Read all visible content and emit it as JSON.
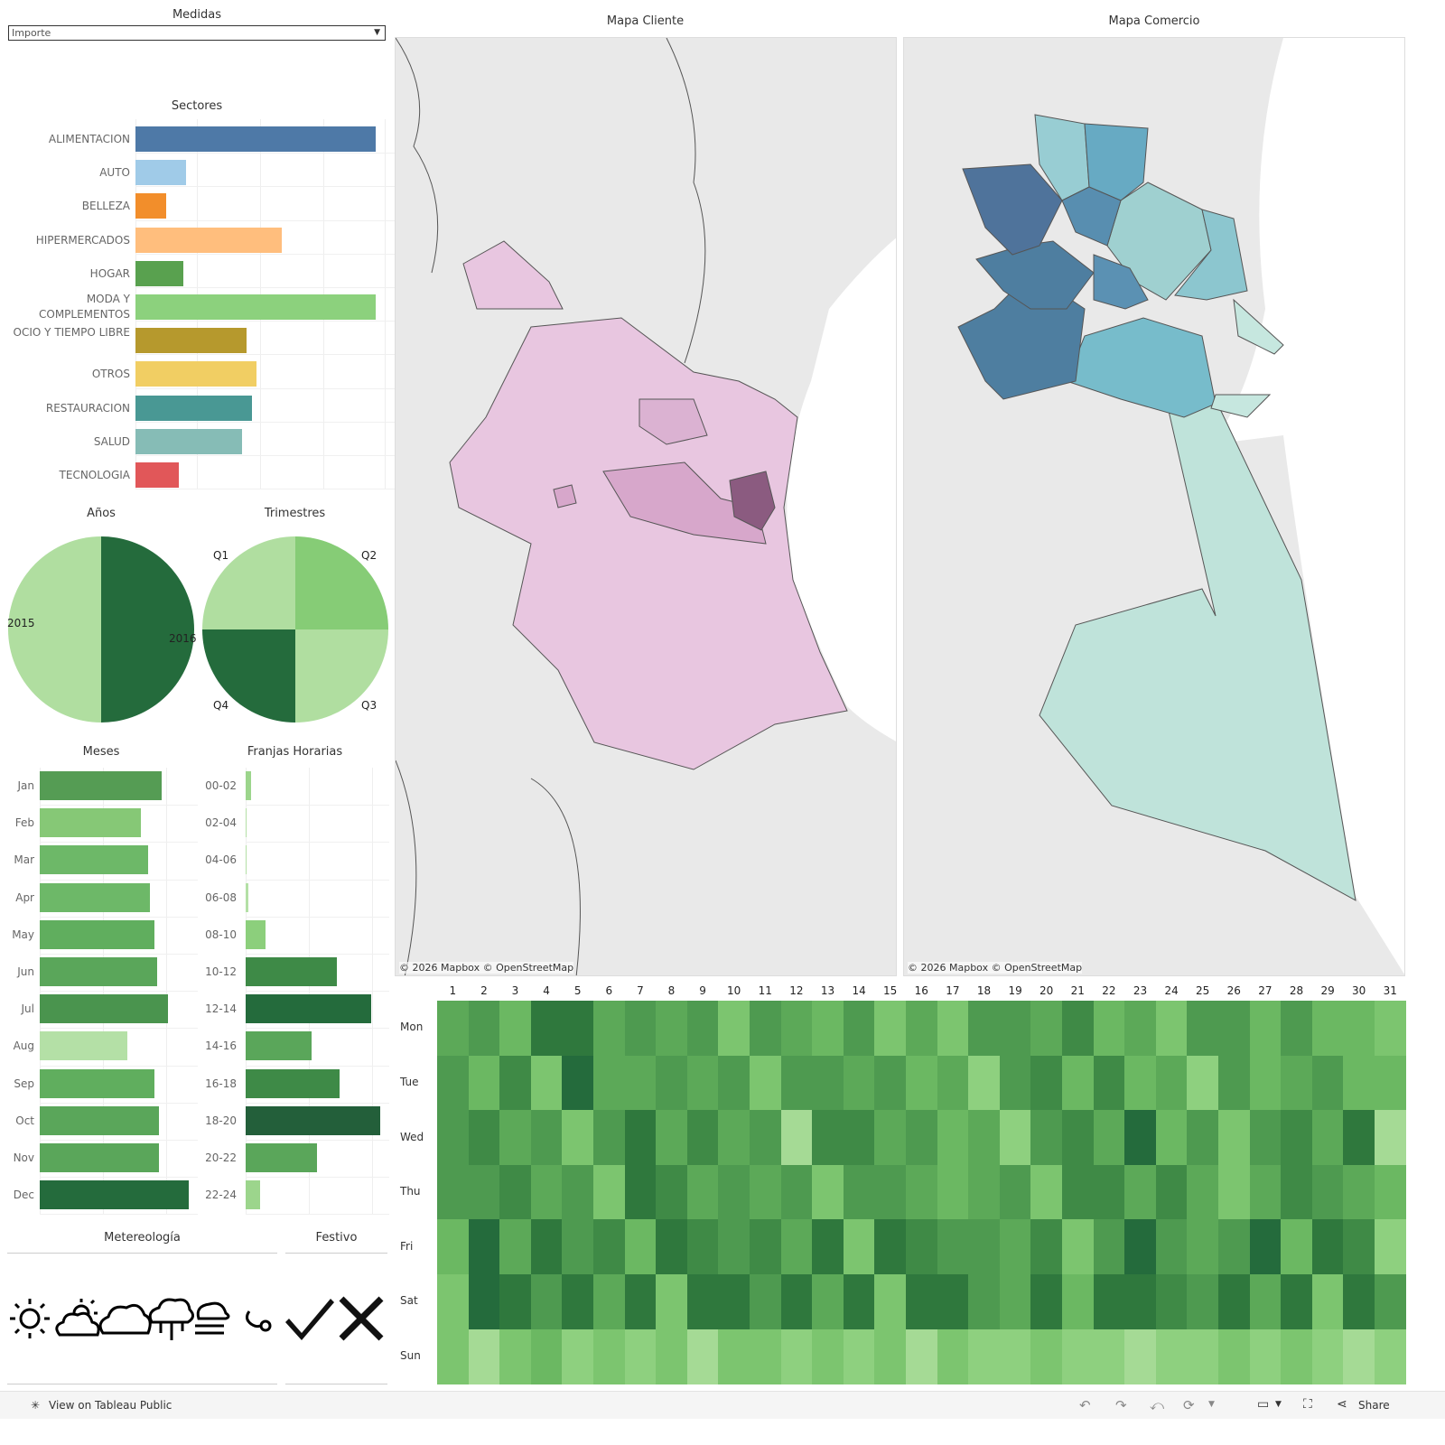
{
  "medidas": {
    "title": "Medidas",
    "value": "Importe"
  },
  "sectores": {
    "title": "Sectores",
    "xmax": 100,
    "items": [
      {
        "label": "ALIMENTACION",
        "value": 95,
        "color": "#4e79a7"
      },
      {
        "label": "AUTO",
        "value": 20,
        "color": "#a0cbe8"
      },
      {
        "label": "BELLEZA",
        "value": 12,
        "color": "#f28e2b"
      },
      {
        "label": "HIPERMERCADOS",
        "value": 58,
        "color": "#ffbe7d"
      },
      {
        "label": "HOGAR",
        "value": 19,
        "color": "#59a14f"
      },
      {
        "label": "MODA Y COMPLEMENTOS",
        "value": 95,
        "color": "#8cd17d"
      },
      {
        "label": "OCIO Y TIEMPO LIBRE",
        "value": 44,
        "color": "#b6992d"
      },
      {
        "label": "OTROS",
        "value": 48,
        "color": "#f1ce63"
      },
      {
        "label": "RESTAURACION",
        "value": 46,
        "color": "#499894"
      },
      {
        "label": "SALUD",
        "value": 42,
        "color": "#86bcb6"
      },
      {
        "label": "TECNOLOGIA",
        "value": 17,
        "color": "#e15759"
      }
    ]
  },
  "anos": {
    "title": "Años",
    "slices": [
      {
        "label": "2015",
        "value": 50,
        "color": "#b0dea0"
      },
      {
        "label": "2016",
        "value": 50,
        "color": "#246b3c"
      }
    ]
  },
  "trimestres": {
    "title": "Trimestres",
    "slices": [
      {
        "label": "Q2",
        "value": 25,
        "color": "#86cc76"
      },
      {
        "label": "Q3",
        "value": 25,
        "color": "#b0dea0"
      },
      {
        "label": "Q4",
        "value": 25,
        "color": "#246b3c"
      },
      {
        "label": "Q1",
        "value": 25,
        "color": "#b0dea0"
      }
    ]
  },
  "meses": {
    "title": "Meses",
    "xmax": 100,
    "items": [
      {
        "label": "Jan",
        "value": 82,
        "color": "#559c54"
      },
      {
        "label": "Feb",
        "value": 68,
        "color": "#86c876"
      },
      {
        "label": "Mar",
        "value": 73,
        "color": "#6db868"
      },
      {
        "label": "Apr",
        "value": 74,
        "color": "#6db868"
      },
      {
        "label": "May",
        "value": 77,
        "color": "#60ae5e"
      },
      {
        "label": "Jun",
        "value": 79,
        "color": "#5aa65a"
      },
      {
        "label": "Jul",
        "value": 86,
        "color": "#4a944e"
      },
      {
        "label": "Aug",
        "value": 59,
        "color": "#b4e0a6"
      },
      {
        "label": "Sep",
        "value": 77,
        "color": "#60ae5e"
      },
      {
        "label": "Oct",
        "value": 80,
        "color": "#5aa65a"
      },
      {
        "label": "Nov",
        "value": 80,
        "color": "#5aa65a"
      },
      {
        "label": "Dec",
        "value": 100,
        "color": "#246b3c"
      }
    ]
  },
  "franjas": {
    "title": "Franjas Horarias",
    "xmax": 100,
    "items": [
      {
        "label": "00-02",
        "value": 4,
        "color": "#9cd58c"
      },
      {
        "label": "02-04",
        "value": 1,
        "color": "#b4e0a6"
      },
      {
        "label": "04-06",
        "value": 1,
        "color": "#b4e0a6"
      },
      {
        "label": "06-08",
        "value": 2,
        "color": "#b4e0a6"
      },
      {
        "label": "08-10",
        "value": 15,
        "color": "#8ccf7c"
      },
      {
        "label": "10-12",
        "value": 68,
        "color": "#3e8a47"
      },
      {
        "label": "12-14",
        "value": 93,
        "color": "#246b3c"
      },
      {
        "label": "14-16",
        "value": 49,
        "color": "#5aa65a"
      },
      {
        "label": "16-18",
        "value": 70,
        "color": "#3e8a47"
      },
      {
        "label": "18-20",
        "value": 100,
        "color": "#235f3a"
      },
      {
        "label": "20-22",
        "value": 53,
        "color": "#5aa65a"
      },
      {
        "label": "22-24",
        "value": 11,
        "color": "#9cd58c"
      }
    ]
  },
  "meteorologia": {
    "title": "Metereología",
    "icons": [
      "sun-icon",
      "partly-cloudy-icon",
      "cloud-icon",
      "cloud-rain-icon",
      "fog-icon",
      "wind-icon"
    ]
  },
  "festivo": {
    "title": "Festivo",
    "icons": [
      "check-icon",
      "cross-icon"
    ]
  },
  "mapa_cliente": {
    "title": "Mapa Cliente",
    "credit": "© 2026 Mapbox  © OpenStreetMap"
  },
  "mapa_comercio": {
    "title": "Mapa Comercio",
    "credit": "© 2026 Mapbox  © OpenStreetMap"
  },
  "heatmap": {
    "days": [
      "1",
      "2",
      "3",
      "4",
      "5",
      "6",
      "7",
      "8",
      "9",
      "10",
      "11",
      "12",
      "13",
      "14",
      "15",
      "16",
      "17",
      "18",
      "19",
      "20",
      "21",
      "22",
      "23",
      "24",
      "25",
      "26",
      "27",
      "28",
      "29",
      "30",
      "31"
    ],
    "weekdays": [
      "Mon",
      "Tue",
      "Wed",
      "Thu",
      "Fri",
      "Sat",
      "Sun"
    ],
    "values": [
      [
        5,
        6,
        4,
        8,
        8,
        5,
        6,
        5,
        6,
        3,
        6,
        5,
        4,
        6,
        3,
        5,
        3,
        6,
        6,
        5,
        7,
        4,
        5,
        3,
        6,
        6,
        4,
        6,
        4,
        4,
        3
      ],
      [
        6,
        4,
        7,
        3,
        9,
        5,
        5,
        6,
        5,
        6,
        3,
        6,
        6,
        5,
        6,
        4,
        5,
        2,
        6,
        7,
        4,
        7,
        4,
        5,
        2,
        6,
        4,
        5,
        6,
        4,
        4
      ],
      [
        6,
        7,
        5,
        6,
        3,
        6,
        8,
        5,
        7,
        5,
        6,
        1,
        7,
        7,
        5,
        6,
        4,
        5,
        2,
        6,
        7,
        5,
        9,
        4,
        6,
        3,
        6,
        7,
        5,
        8,
        1
      ],
      [
        6,
        6,
        7,
        5,
        6,
        3,
        8,
        7,
        5,
        6,
        5,
        6,
        3,
        6,
        6,
        5,
        4,
        5,
        6,
        3,
        7,
        7,
        5,
        7,
        5,
        3,
        5,
        7,
        6,
        5,
        4
      ],
      [
        4,
        9,
        5,
        8,
        6,
        7,
        4,
        8,
        7,
        6,
        7,
        5,
        8,
        3,
        8,
        7,
        6,
        6,
        5,
        7,
        3,
        6,
        9,
        6,
        5,
        6,
        9,
        4,
        8,
        7,
        2
      ],
      [
        3,
        9,
        8,
        6,
        8,
        5,
        8,
        3,
        8,
        8,
        6,
        8,
        5,
        8,
        3,
        8,
        8,
        6,
        5,
        8,
        4,
        8,
        8,
        7,
        6,
        8,
        5,
        8,
        3,
        8,
        6
      ],
      [
        3,
        1,
        3,
        4,
        2,
        3,
        2,
        3,
        1,
        3,
        3,
        2,
        3,
        2,
        3,
        1,
        3,
        2,
        2,
        3,
        2,
        2,
        1,
        2,
        2,
        3,
        2,
        3,
        2,
        1,
        2
      ]
    ],
    "scale": [
      "#b4e0a6",
      "#a5da95",
      "#8ed07f",
      "#7cc56f",
      "#6bb862",
      "#5ca958",
      "#4e9a50",
      "#3f8a46",
      "#2f783d",
      "#246b3c"
    ]
  },
  "footer": {
    "tableau_public": "View on Tableau Public",
    "share": "Share"
  }
}
